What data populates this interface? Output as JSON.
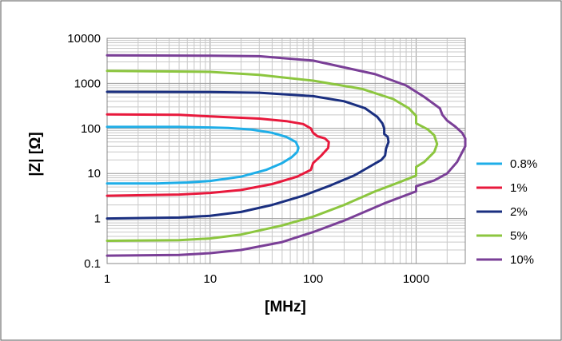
{
  "chart_data": {
    "type": "line",
    "title": "",
    "xlabel": "[MHz]",
    "ylabel": "|Z|  [Ω]",
    "xscale": "log",
    "yscale": "log",
    "xlim": [
      1,
      3000
    ],
    "ylim": [
      0.1,
      10000
    ],
    "xticks": [
      "1",
      "10",
      "100",
      "1000"
    ],
    "yticks": [
      "0.1",
      "1",
      "10",
      "100",
      "1000",
      "10000"
    ],
    "grid": true,
    "legend_position": "right",
    "series": [
      {
        "name": "0.8%",
        "color": "#1eaee8",
        "points": [
          [
            1,
            6
          ],
          [
            3,
            6
          ],
          [
            6,
            6.3
          ],
          [
            10,
            6.8
          ],
          [
            20,
            8.5
          ],
          [
            35,
            12
          ],
          [
            50,
            17
          ],
          [
            62,
            23
          ],
          [
            70,
            30
          ],
          [
            72,
            37
          ],
          [
            68,
            50
          ],
          [
            55,
            65
          ],
          [
            40,
            80
          ],
          [
            25,
            95
          ],
          [
            15,
            102
          ],
          [
            10,
            105
          ],
          [
            5,
            108
          ],
          [
            1,
            108
          ]
        ]
      },
      {
        "name": "1%",
        "color": "#e8193c",
        "points": [
          [
            1,
            3.2
          ],
          [
            5,
            3.4
          ],
          [
            10,
            3.7
          ],
          [
            20,
            4.3
          ],
          [
            40,
            5.8
          ],
          [
            70,
            8.5
          ],
          [
            95,
            12
          ],
          [
            100,
            17
          ],
          [
            120,
            25
          ],
          [
            140,
            37
          ],
          [
            142,
            50
          ],
          [
            130,
            60
          ],
          [
            110,
            67
          ],
          [
            100,
            80
          ],
          [
            95,
            100
          ],
          [
            80,
            125
          ],
          [
            55,
            145
          ],
          [
            30,
            165
          ],
          [
            10,
            185
          ],
          [
            5,
            200
          ],
          [
            1,
            205
          ]
        ]
      },
      {
        "name": "2%",
        "color": "#1a2f80",
        "points": [
          [
            1,
            1
          ],
          [
            5,
            1.05
          ],
          [
            10,
            1.15
          ],
          [
            20,
            1.4
          ],
          [
            40,
            2
          ],
          [
            80,
            3.2
          ],
          [
            150,
            5.5
          ],
          [
            250,
            9
          ],
          [
            350,
            14
          ],
          [
            460,
            20
          ],
          [
            500,
            25
          ],
          [
            510,
            35
          ],
          [
            540,
            50
          ],
          [
            530,
            65
          ],
          [
            490,
            75
          ],
          [
            490,
            100
          ],
          [
            470,
            130
          ],
          [
            420,
            180
          ],
          [
            320,
            280
          ],
          [
            200,
            400
          ],
          [
            100,
            520
          ],
          [
            30,
            620
          ],
          [
            10,
            640
          ],
          [
            1,
            650
          ]
        ]
      },
      {
        "name": "5%",
        "color": "#8cc63f",
        "points": [
          [
            1,
            0.32
          ],
          [
            5,
            0.33
          ],
          [
            10,
            0.36
          ],
          [
            20,
            0.44
          ],
          [
            50,
            0.7
          ],
          [
            100,
            1.1
          ],
          [
            200,
            2
          ],
          [
            400,
            4
          ],
          [
            700,
            6.5
          ],
          [
            1000,
            9
          ],
          [
            1000,
            14
          ],
          [
            1200,
            18
          ],
          [
            1500,
            30
          ],
          [
            1600,
            45
          ],
          [
            1500,
            70
          ],
          [
            1300,
            95
          ],
          [
            1000,
            130
          ],
          [
            1000,
            190
          ],
          [
            850,
            280
          ],
          [
            600,
            450
          ],
          [
            300,
            750
          ],
          [
            100,
            1150
          ],
          [
            30,
            1550
          ],
          [
            10,
            1800
          ],
          [
            1,
            1900
          ]
        ]
      },
      {
        "name": "10%",
        "color": "#7a3f97",
        "points": [
          [
            1,
            0.15
          ],
          [
            5,
            0.155
          ],
          [
            10,
            0.17
          ],
          [
            20,
            0.2
          ],
          [
            50,
            0.3
          ],
          [
            100,
            0.5
          ],
          [
            200,
            0.9
          ],
          [
            500,
            2.2
          ],
          [
            1000,
            4
          ],
          [
            1000,
            5.2
          ],
          [
            1500,
            7
          ],
          [
            2000,
            10
          ],
          [
            2500,
            18
          ],
          [
            3000,
            40
          ],
          [
            3000,
            60
          ],
          [
            2800,
            80
          ],
          [
            2400,
            110
          ],
          [
            2000,
            150
          ],
          [
            1800,
            200
          ],
          [
            1700,
            280
          ],
          [
            1200,
            500
          ],
          [
            800,
            900
          ],
          [
            400,
            1600
          ],
          [
            100,
            3200
          ],
          [
            30,
            4000
          ],
          [
            10,
            4100
          ],
          [
            1,
            4200
          ]
        ]
      }
    ]
  }
}
